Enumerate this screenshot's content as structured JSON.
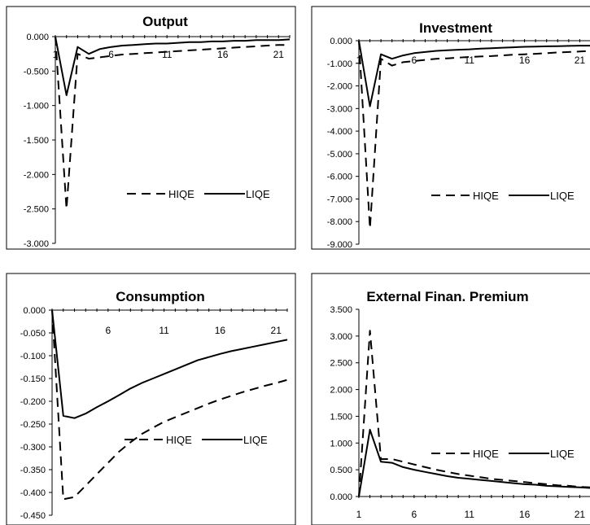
{
  "chart_data": [
    {
      "type": "line",
      "title": "Output",
      "ylim": [
        -3.0,
        0.0
      ],
      "yticks": [
        "0.000",
        "-0.500",
        "-1.000",
        "-1.500",
        "-2.000",
        "-2.500",
        "-3.000"
      ],
      "ytick_values": [
        0.0,
        -0.5,
        -1.0,
        -1.5,
        -2.0,
        -2.5,
        -3.0
      ],
      "xticks": [
        "1",
        "6",
        "11",
        "16",
        "21"
      ],
      "xtick_values": [
        1,
        6,
        11,
        16,
        21
      ],
      "x": [
        1,
        2,
        3,
        4,
        5,
        6,
        7,
        8,
        9,
        10,
        11,
        12,
        13,
        14,
        15,
        16,
        17,
        18,
        19,
        20,
        21,
        22
      ],
      "series": [
        {
          "name": "HIQE",
          "style": "dashed",
          "values": [
            0.0,
            -2.5,
            -0.25,
            -0.32,
            -0.3,
            -0.28,
            -0.26,
            -0.25,
            -0.24,
            -0.23,
            -0.22,
            -0.21,
            -0.2,
            -0.19,
            -0.18,
            -0.17,
            -0.16,
            -0.15,
            -0.14,
            -0.13,
            -0.12,
            -0.12
          ]
        },
        {
          "name": "LIQE",
          "style": "solid",
          "values": [
            0.0,
            -0.85,
            -0.15,
            -0.25,
            -0.18,
            -0.15,
            -0.13,
            -0.12,
            -0.11,
            -0.1,
            -0.1,
            -0.09,
            -0.08,
            -0.08,
            -0.07,
            -0.07,
            -0.06,
            -0.06,
            -0.05,
            -0.05,
            -0.05,
            -0.04
          ]
        }
      ],
      "legend": "lower-right"
    },
    {
      "type": "line",
      "title": "Investment",
      "ylim": [
        -9.0,
        0.0
      ],
      "yticks": [
        "0.000",
        "-1.000",
        "-2.000",
        "-3.000",
        "-4.000",
        "-5.000",
        "-6.000",
        "-7.000",
        "-8.000",
        "-9.000"
      ],
      "ytick_values": [
        0.0,
        -1.0,
        -2.0,
        -3.0,
        -4.0,
        -5.0,
        -6.0,
        -7.0,
        -8.0,
        -9.0
      ],
      "xticks": [
        "1",
        "6",
        "11",
        "16",
        "21"
      ],
      "xtick_values": [
        1,
        6,
        11,
        16,
        21
      ],
      "x": [
        1,
        2,
        3,
        4,
        5,
        6,
        7,
        8,
        9,
        10,
        11,
        12,
        13,
        14,
        15,
        16,
        17,
        18,
        19,
        20,
        21,
        22
      ],
      "series": [
        {
          "name": "HIQE",
          "style": "dashed",
          "values": [
            0.0,
            -8.3,
            -0.8,
            -1.1,
            -0.95,
            -0.9,
            -0.85,
            -0.8,
            -0.78,
            -0.75,
            -0.72,
            -0.7,
            -0.68,
            -0.65,
            -0.62,
            -0.6,
            -0.58,
            -0.55,
            -0.52,
            -0.5,
            -0.48,
            -0.45
          ]
        },
        {
          "name": "LIQE",
          "style": "solid",
          "values": [
            0.0,
            -2.9,
            -0.6,
            -0.8,
            -0.65,
            -0.55,
            -0.5,
            -0.45,
            -0.42,
            -0.4,
            -0.38,
            -0.35,
            -0.33,
            -0.31,
            -0.29,
            -0.27,
            -0.26,
            -0.25,
            -0.24,
            -0.23,
            -0.22,
            -0.22
          ]
        }
      ],
      "legend": "lower-right"
    },
    {
      "type": "line",
      "title": "Consumption",
      "ylim": [
        -0.45,
        0.0
      ],
      "yticks": [
        "0.000",
        "-0.050",
        "-0.100",
        "-0.150",
        "-0.200",
        "-0.250",
        "-0.300",
        "-0.350",
        "-0.400",
        "-0.450"
      ],
      "ytick_values": [
        0.0,
        -0.05,
        -0.1,
        -0.15,
        -0.2,
        -0.25,
        -0.3,
        -0.35,
        -0.4,
        -0.45
      ],
      "xticks": [
        "6",
        "11",
        "16",
        "21"
      ],
      "xtick_values": [
        6,
        11,
        16,
        21
      ],
      "x": [
        1,
        2,
        3,
        4,
        5,
        6,
        7,
        8,
        9,
        10,
        11,
        12,
        13,
        14,
        15,
        16,
        17,
        18,
        19,
        20,
        21,
        22
      ],
      "series": [
        {
          "name": "HIQE",
          "style": "dashed",
          "values": [
            0.0,
            -0.415,
            -0.41,
            -0.385,
            -0.36,
            -0.335,
            -0.31,
            -0.29,
            -0.272,
            -0.258,
            -0.245,
            -0.235,
            -0.225,
            -0.215,
            -0.205,
            -0.196,
            -0.188,
            -0.18,
            -0.173,
            -0.166,
            -0.16,
            -0.153
          ]
        },
        {
          "name": "LIQE",
          "style": "solid",
          "values": [
            0.0,
            -0.232,
            -0.237,
            -0.227,
            -0.213,
            -0.2,
            -0.186,
            -0.172,
            -0.16,
            -0.15,
            -0.14,
            -0.13,
            -0.12,
            -0.11,
            -0.103,
            -0.096,
            -0.09,
            -0.085,
            -0.08,
            -0.075,
            -0.07,
            -0.065
          ]
        }
      ],
      "legend": "lower-right"
    },
    {
      "type": "line",
      "title": "External Finan. Premium",
      "ylim": [
        0.0,
        3.5
      ],
      "yticks": [
        "3.500",
        "3.000",
        "2.500",
        "2.000",
        "1.500",
        "1.000",
        "0.500",
        "0.000"
      ],
      "ytick_values": [
        3.5,
        3.0,
        2.5,
        2.0,
        1.5,
        1.0,
        0.5,
        0.0
      ],
      "xticks": [
        "1",
        "6",
        "11",
        "16",
        "21"
      ],
      "xtick_values": [
        1,
        6,
        11,
        16,
        21
      ],
      "x": [
        1,
        2,
        3,
        4,
        5,
        6,
        7,
        8,
        9,
        10,
        11,
        12,
        13,
        14,
        15,
        16,
        17,
        18,
        19,
        20,
        21,
        22
      ],
      "series": [
        {
          "name": "HIQE",
          "style": "dashed",
          "values": [
            0.0,
            3.1,
            0.7,
            0.7,
            0.65,
            0.6,
            0.55,
            0.5,
            0.46,
            0.42,
            0.39,
            0.36,
            0.33,
            0.31,
            0.29,
            0.27,
            0.25,
            0.23,
            0.21,
            0.2,
            0.18,
            0.17
          ]
        },
        {
          "name": "LIQE",
          "style": "solid",
          "values": [
            0.0,
            1.25,
            0.65,
            0.63,
            0.55,
            0.5,
            0.46,
            0.42,
            0.38,
            0.35,
            0.33,
            0.31,
            0.29,
            0.27,
            0.25,
            0.23,
            0.22,
            0.2,
            0.19,
            0.18,
            0.17,
            0.16
          ]
        }
      ],
      "legend": "upper-right"
    }
  ]
}
